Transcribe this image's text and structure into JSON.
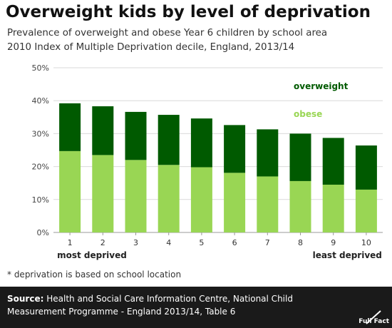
{
  "header": {
    "title": "Overweight kids by level of deprivation",
    "subtitle_line1": "Prevalence of overweight and obese Year 6 children by school area",
    "subtitle_line2": "2010 Index of Multiple Deprivation decile, England, 2013/14"
  },
  "chart_data": {
    "type": "bar",
    "stacked": true,
    "categories": [
      "1",
      "2",
      "3",
      "4",
      "5",
      "6",
      "7",
      "8",
      "9",
      "10"
    ],
    "series": [
      {
        "name": "obese",
        "color": "#99d654",
        "values": [
          24.7,
          23.5,
          22.0,
          20.5,
          19.8,
          18.1,
          17.0,
          15.6,
          14.5,
          13.0
        ]
      },
      {
        "name": "overweight",
        "color": "#005a00",
        "values": [
          14.5,
          14.8,
          14.6,
          15.2,
          14.8,
          14.5,
          14.3,
          14.4,
          14.2,
          13.4
        ]
      }
    ],
    "ylim": [
      0,
      50
    ],
    "yticks": [
      0,
      10,
      20,
      30,
      40,
      50
    ],
    "ytick_labels": [
      "0%",
      "10%",
      "20%",
      "30%",
      "40%",
      "50%"
    ],
    "grid": true,
    "legend_placement": "top-right, inline labels",
    "x_end_labels": {
      "left": "most deprived",
      "right": "least deprived"
    }
  },
  "footnote": "* deprivation is based on school location",
  "footer": {
    "source_label": "Source:",
    "source_text": "Health and Social Care Information Centre, National Child Measurement Programme - England 2013/14, Table 6",
    "logo_text": "Full Fact"
  },
  "colors": {
    "obese": "#99d654",
    "overweight": "#005a00",
    "footer_bg": "#1a1a1a",
    "gridline": "#d9d9d9"
  }
}
